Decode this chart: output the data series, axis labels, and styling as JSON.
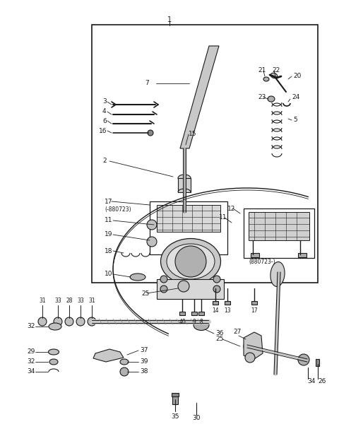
{
  "bg_color": "#ffffff",
  "line_color": "#1a1a1a",
  "fig_width": 4.8,
  "fig_height": 6.24,
  "dpi": 100
}
